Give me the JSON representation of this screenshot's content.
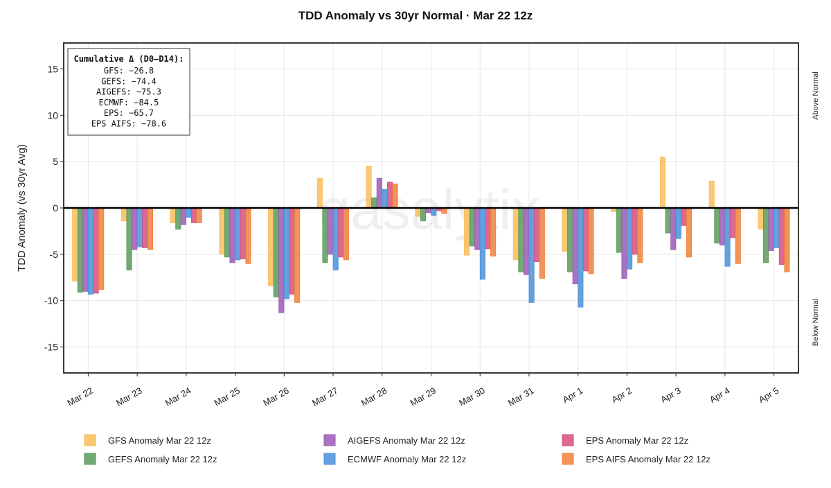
{
  "chart_data": {
    "type": "bar",
    "title": "TDD Anomaly vs 30yr Normal · Mar 22 12z",
    "xlabel": "",
    "ylabel": "TDD Anomaly (vs 30yr Avg)",
    "right_labels": {
      "top": "Above Normal",
      "bottom": "Below Normal"
    },
    "ylim": [
      -17.8,
      17.8
    ],
    "yticks": [
      -15,
      -10,
      -5,
      0,
      5,
      10,
      15
    ],
    "watermark": "gasalytix",
    "categories": [
      "Mar 22",
      "Mar 23",
      "Mar 24",
      "Mar 25",
      "Mar 26",
      "Mar 27",
      "Mar 28",
      "Mar 29",
      "Mar 30",
      "Mar 31",
      "Apr 1",
      "Apr 2",
      "Apr 3",
      "Apr 4",
      "Apr 5"
    ],
    "series": [
      {
        "name": "GFS Anomaly Mar 22 12z",
        "color": "#f9be5b",
        "values": [
          -7.9,
          -1.4,
          -1.6,
          -5.0,
          -8.4,
          3.2,
          4.5,
          -0.9,
          -5.1,
          -5.6,
          -4.7,
          -0.4,
          5.5,
          2.9,
          -2.3
        ]
      },
      {
        "name": "GEFS Anomaly Mar 22 12z",
        "color": "#5a9a5a",
        "values": [
          -9.1,
          -6.7,
          -2.3,
          -5.3,
          -9.6,
          -5.9,
          1.1,
          -1.4,
          -4.1,
          -6.9,
          -6.9,
          -4.8,
          -2.7,
          -3.8,
          -5.9
        ]
      },
      {
        "name": "AIGEFS Anomaly Mar 22 12z",
        "color": "#9b59b6",
        "values": [
          -9.0,
          -4.5,
          -1.8,
          -5.9,
          -11.3,
          -5.0,
          3.2,
          -0.5,
          -4.5,
          -7.2,
          -8.2,
          -7.6,
          -4.5,
          -4.0,
          -4.6
        ]
      },
      {
        "name": "ECMWF Anomaly Mar 22 12z",
        "color": "#4a90d9",
        "values": [
          -9.3,
          -4.2,
          -1.0,
          -5.6,
          -9.8,
          -6.7,
          2.0,
          -0.8,
          -7.7,
          -10.2,
          -10.7,
          -6.6,
          -3.3,
          -6.3,
          -4.3
        ]
      },
      {
        "name": "EPS Anomaly Mar 22 12z",
        "color": "#d64f7f",
        "values": [
          -9.2,
          -4.3,
          -1.6,
          -5.5,
          -9.3,
          -5.3,
          2.8,
          -0.3,
          -4.4,
          -5.8,
          -6.8,
          -5.0,
          -1.9,
          -3.2,
          -6.1
        ]
      },
      {
        "name": "EPS AIFS Anomaly Mar 22 12z",
        "color": "#f0813a",
        "values": [
          -8.8,
          -4.5,
          -1.6,
          -6.0,
          -10.2,
          -5.6,
          2.6,
          -0.6,
          -5.2,
          -7.6,
          -7.1,
          -5.9,
          -5.3,
          -6.0,
          -6.9
        ]
      }
    ],
    "legend_order": [
      0,
      1,
      2,
      3,
      4,
      5
    ],
    "legend_placement": "bottom",
    "annotation": {
      "title": "Cumulative Δ (D0–D14):",
      "lines": [
        "GFS: −26.8",
        "GEFS: −74.4",
        "AIGEFS: −75.3",
        "ECMWF: −84.5",
        "EPS: −65.7",
        "EPS AIFS: −78.6"
      ]
    }
  }
}
